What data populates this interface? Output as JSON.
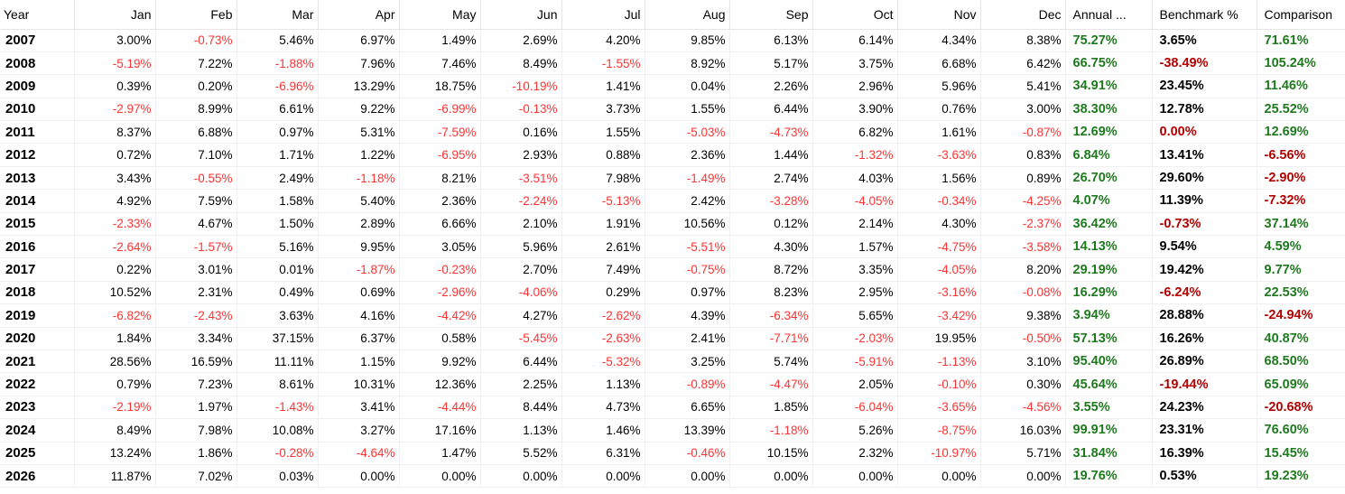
{
  "columns": [
    "Year",
    "Jan",
    "Feb",
    "Mar",
    "Apr",
    "May",
    "Jun",
    "Jul",
    "Aug",
    "Sep",
    "Oct",
    "Nov",
    "Dec",
    "Annual ...",
    "Benchmark %",
    "Comparison"
  ],
  "colors": {
    "positive_month": "#000000",
    "negative_month": "#ff3333",
    "positive_summary": "#1f7a1f",
    "negative_summary": "#b30000"
  },
  "rows": [
    {
      "year": "2007",
      "months": [
        "3.00%",
        "-0.73%",
        "5.46%",
        "6.97%",
        "1.49%",
        "2.69%",
        "4.20%",
        "9.85%",
        "6.13%",
        "6.14%",
        "4.34%",
        "8.38%"
      ],
      "annual": "75.27%",
      "benchmark": "3.65%",
      "comparison": "71.61%"
    },
    {
      "year": "2008",
      "months": [
        "-5.19%",
        "7.22%",
        "-1.88%",
        "7.96%",
        "7.46%",
        "8.49%",
        "-1.55%",
        "8.92%",
        "5.17%",
        "3.75%",
        "6.68%",
        "6.42%"
      ],
      "annual": "66.75%",
      "benchmark": "-38.49%",
      "comparison": "105.24%"
    },
    {
      "year": "2009",
      "months": [
        "0.39%",
        "0.20%",
        "-6.96%",
        "13.29%",
        "18.75%",
        "-10.19%",
        "1.41%",
        "0.04%",
        "2.26%",
        "2.96%",
        "5.96%",
        "5.41%"
      ],
      "annual": "34.91%",
      "benchmark": "23.45%",
      "comparison": "11.46%"
    },
    {
      "year": "2010",
      "months": [
        "-2.97%",
        "8.99%",
        "6.61%",
        "9.22%",
        "-6.99%",
        "-0.13%",
        "3.73%",
        "1.55%",
        "6.44%",
        "3.90%",
        "0.76%",
        "3.00%"
      ],
      "annual": "38.30%",
      "benchmark": "12.78%",
      "comparison": "25.52%"
    },
    {
      "year": "2011",
      "months": [
        "8.37%",
        "6.88%",
        "0.97%",
        "5.31%",
        "-7.59%",
        "0.16%",
        "1.55%",
        "-5.03%",
        "-4.73%",
        "6.82%",
        "1.61%",
        "-0.87%"
      ],
      "annual": "12.69%",
      "benchmark": "0.00%",
      "comparison": "12.69%"
    },
    {
      "year": "2012",
      "months": [
        "0.72%",
        "7.10%",
        "1.71%",
        "1.22%",
        "-6.95%",
        "2.93%",
        "0.88%",
        "2.36%",
        "1.44%",
        "-1.32%",
        "-3.63%",
        "0.83%"
      ],
      "annual": "6.84%",
      "benchmark": "13.41%",
      "comparison": "-6.56%"
    },
    {
      "year": "2013",
      "months": [
        "3.43%",
        "-0.55%",
        "2.49%",
        "-1.18%",
        "8.21%",
        "-3.51%",
        "7.98%",
        "-1.49%",
        "2.74%",
        "4.03%",
        "1.56%",
        "0.89%"
      ],
      "annual": "26.70%",
      "benchmark": "29.60%",
      "comparison": "-2.90%"
    },
    {
      "year": "2014",
      "months": [
        "4.92%",
        "7.59%",
        "1.58%",
        "5.40%",
        "2.36%",
        "-2.24%",
        "-5.13%",
        "2.42%",
        "-3.28%",
        "-4.05%",
        "-0.34%",
        "-4.25%"
      ],
      "annual": "4.07%",
      "benchmark": "11.39%",
      "comparison": "-7.32%"
    },
    {
      "year": "2015",
      "months": [
        "-2.33%",
        "4.67%",
        "1.50%",
        "2.89%",
        "6.66%",
        "2.10%",
        "1.91%",
        "10.56%",
        "0.12%",
        "2.14%",
        "4.30%",
        "-2.37%"
      ],
      "annual": "36.42%",
      "benchmark": "-0.73%",
      "comparison": "37.14%"
    },
    {
      "year": "2016",
      "months": [
        "-2.64%",
        "-1.57%",
        "5.16%",
        "9.95%",
        "3.05%",
        "5.96%",
        "2.61%",
        "-5.51%",
        "4.30%",
        "1.57%",
        "-4.75%",
        "-3.58%"
      ],
      "annual": "14.13%",
      "benchmark": "9.54%",
      "comparison": "4.59%"
    },
    {
      "year": "2017",
      "months": [
        "0.22%",
        "3.01%",
        "0.01%",
        "-1.87%",
        "-0.23%",
        "2.70%",
        "7.49%",
        "-0.75%",
        "8.72%",
        "3.35%",
        "-4.05%",
        "8.20%"
      ],
      "annual": "29.19%",
      "benchmark": "19.42%",
      "comparison": "9.77%"
    },
    {
      "year": "2018",
      "months": [
        "10.52%",
        "2.31%",
        "0.49%",
        "0.69%",
        "-2.96%",
        "-4.06%",
        "0.29%",
        "0.97%",
        "8.23%",
        "2.95%",
        "-3.16%",
        "-0.08%"
      ],
      "annual": "16.29%",
      "benchmark": "-6.24%",
      "comparison": "22.53%"
    },
    {
      "year": "2019",
      "months": [
        "-6.82%",
        "-2.43%",
        "3.63%",
        "4.16%",
        "-4.42%",
        "4.27%",
        "-2.62%",
        "4.39%",
        "-6.34%",
        "5.65%",
        "-3.42%",
        "9.38%"
      ],
      "annual": "3.94%",
      "benchmark": "28.88%",
      "comparison": "-24.94%"
    },
    {
      "year": "2020",
      "months": [
        "1.84%",
        "3.34%",
        "37.15%",
        "6.37%",
        "0.58%",
        "-5.45%",
        "-2.63%",
        "2.41%",
        "-7.71%",
        "-2.03%",
        "19.95%",
        "-0.50%"
      ],
      "annual": "57.13%",
      "benchmark": "16.26%",
      "comparison": "40.87%"
    },
    {
      "year": "2021",
      "months": [
        "28.56%",
        "16.59%",
        "11.11%",
        "1.15%",
        "9.92%",
        "6.44%",
        "-5.32%",
        "3.25%",
        "5.74%",
        "-5.91%",
        "-1.13%",
        "3.10%"
      ],
      "annual": "95.40%",
      "benchmark": "26.89%",
      "comparison": "68.50%"
    },
    {
      "year": "2022",
      "months": [
        "0.79%",
        "7.23%",
        "8.61%",
        "10.31%",
        "12.36%",
        "2.25%",
        "1.13%",
        "-0.89%",
        "-4.47%",
        "2.05%",
        "-0.10%",
        "0.30%"
      ],
      "annual": "45.64%",
      "benchmark": "-19.44%",
      "comparison": "65.09%"
    },
    {
      "year": "2023",
      "months": [
        "-2.19%",
        "1.97%",
        "-1.43%",
        "3.41%",
        "-4.44%",
        "8.44%",
        "4.73%",
        "6.65%",
        "1.85%",
        "-6.04%",
        "-3.65%",
        "-4.56%"
      ],
      "annual": "3.55%",
      "benchmark": "24.23%",
      "comparison": "-20.68%"
    },
    {
      "year": "2024",
      "months": [
        "8.49%",
        "7.98%",
        "10.08%",
        "3.27%",
        "17.16%",
        "1.13%",
        "1.46%",
        "13.39%",
        "-1.18%",
        "5.26%",
        "-8.75%",
        "16.03%"
      ],
      "annual": "99.91%",
      "benchmark": "23.31%",
      "comparison": "76.60%"
    },
    {
      "year": "2025",
      "months": [
        "13.24%",
        "1.86%",
        "-0.28%",
        "-4.64%",
        "1.47%",
        "5.52%",
        "6.31%",
        "-0.46%",
        "10.15%",
        "2.32%",
        "-10.97%",
        "5.71%"
      ],
      "annual": "31.84%",
      "benchmark": "16.39%",
      "comparison": "15.45%"
    },
    {
      "year": "2026",
      "months": [
        "11.87%",
        "7.02%",
        "0.03%",
        "0.00%",
        "0.00%",
        "0.00%",
        "0.00%",
        "0.00%",
        "0.00%",
        "0.00%",
        "0.00%",
        "0.00%"
      ],
      "annual": "19.76%",
      "benchmark": "0.53%",
      "comparison": "19.23%"
    }
  ]
}
